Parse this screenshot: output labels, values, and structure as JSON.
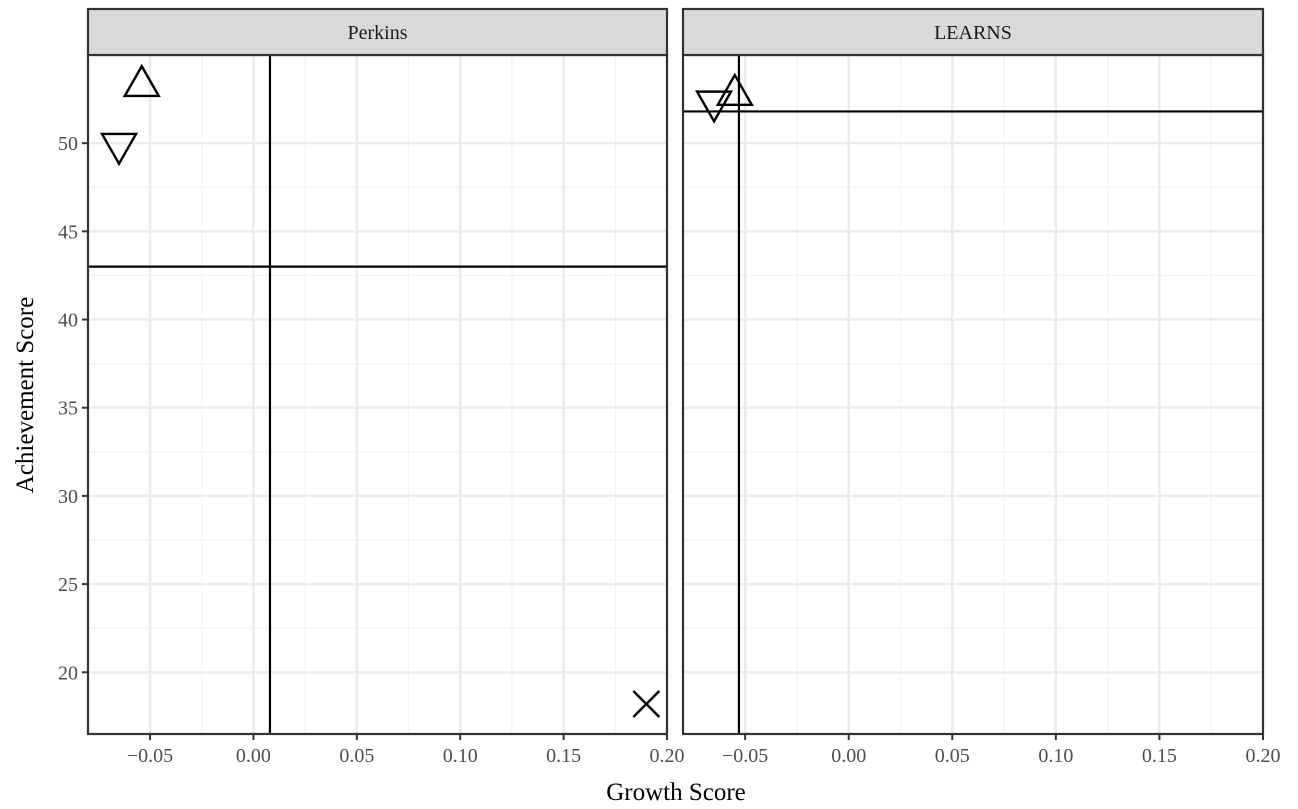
{
  "chart_data": {
    "type": "scatter",
    "xlabel": "Growth Score",
    "ylabel": "Achievement Score",
    "xlim": [
      -0.08,
      0.2
    ],
    "ylim": [
      16.5,
      55
    ],
    "x_ticks": [
      -0.05,
      0.0,
      0.05,
      0.1,
      0.15,
      0.2
    ],
    "x_tick_labels": [
      "−0.05",
      "0.00",
      "0.05",
      "0.10",
      "0.15",
      "0.20"
    ],
    "y_ticks": [
      20,
      25,
      30,
      35,
      40,
      45,
      50
    ],
    "y_tick_labels": [
      "20",
      "25",
      "30",
      "35",
      "40",
      "45",
      "50"
    ],
    "grid": true,
    "panels": [
      {
        "title": "Perkins",
        "vline": 0.008,
        "hline": 43.0,
        "points": [
          {
            "x": -0.054,
            "y": 53.4,
            "shape": "triangle-up"
          },
          {
            "x": -0.065,
            "y": 49.8,
            "shape": "triangle-down"
          },
          {
            "x": 0.19,
            "y": 18.2,
            "shape": "cross"
          }
        ]
      },
      {
        "title": "LEARNS",
        "vline": -0.053,
        "hline": 51.8,
        "points": [
          {
            "x": -0.065,
            "y": 52.2,
            "shape": "triangle-down"
          },
          {
            "x": -0.055,
            "y": 52.9,
            "shape": "triangle-up"
          }
        ]
      }
    ]
  }
}
